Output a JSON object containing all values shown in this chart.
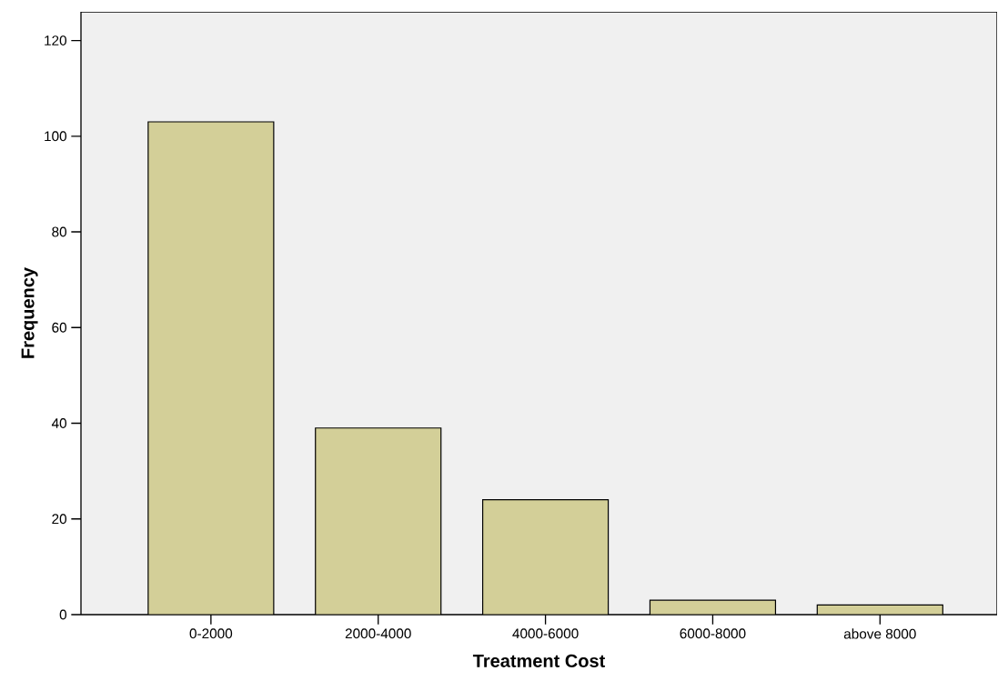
{
  "chart_data": {
    "type": "bar",
    "xlabel": "Treatment Cost",
    "ylabel": "Frequency",
    "categories": [
      "0-2000",
      "2000-4000",
      "4000-6000",
      "6000-8000",
      "above 8000"
    ],
    "values": [
      103,
      39,
      24,
      3,
      2
    ],
    "color": "#d3cf98",
    "ylim": [
      0,
      126
    ],
    "yticks": [
      0,
      20,
      40,
      60,
      80,
      100,
      120
    ]
  }
}
